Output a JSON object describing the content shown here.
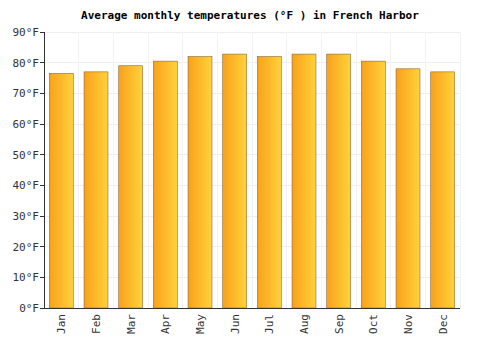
{
  "chart_data": {
    "type": "bar",
    "title": "Average monthly temperatures (°F ) in French Harbor",
    "categories": [
      "Jan",
      "Feb",
      "Mar",
      "Apr",
      "May",
      "Jun",
      "Jul",
      "Aug",
      "Sep",
      "Oct",
      "Nov",
      "Dec"
    ],
    "values": [
      76.5,
      77,
      79,
      80.5,
      82,
      82.8,
      82,
      82.8,
      82.8,
      80.5,
      78,
      77
    ],
    "color": "#f9a11b",
    "ylim": [
      0,
      90
    ],
    "yticks": [
      {
        "value": 0,
        "label": "0°F"
      },
      {
        "value": 10,
        "label": "10°F"
      },
      {
        "value": 20,
        "label": "20°F"
      },
      {
        "value": 30,
        "label": "30°F"
      },
      {
        "value": 40,
        "label": "40°F"
      },
      {
        "value": 50,
        "label": "50°F"
      },
      {
        "value": 60,
        "label": "60°F"
      },
      {
        "value": 70,
        "label": "70°F"
      },
      {
        "value": 80,
        "label": "80°F"
      },
      {
        "value": 90,
        "label": "90°F"
      }
    ],
    "grid": true
  }
}
